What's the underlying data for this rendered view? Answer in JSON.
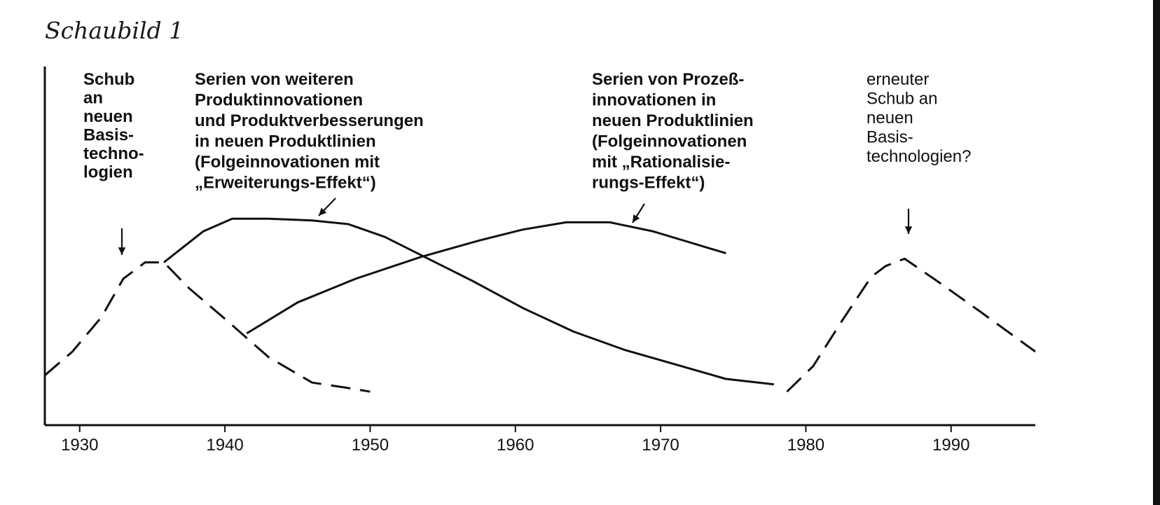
{
  "chart_data": {
    "type": "line",
    "title": "Schaubild 1",
    "xlabel": "",
    "ylabel": "",
    "xlim": [
      1927.6,
      1995.8
    ],
    "ylim": [
      0,
      100
    ],
    "x_ticks": [
      1930,
      1940,
      1950,
      1960,
      1970,
      1980,
      1990
    ],
    "grid": false,
    "series": [
      {
        "style": "dashed",
        "color": "#111111",
        "points": [
          [
            1927.6,
            12
          ],
          [
            1929.5,
            25
          ],
          [
            1931.5,
            44
          ],
          [
            1933.0,
            65
          ],
          [
            1934.5,
            74
          ],
          [
            1935.8,
            74
          ],
          [
            1937.5,
            60
          ],
          [
            1940.0,
            43
          ],
          [
            1943.0,
            22
          ],
          [
            1946.0,
            8
          ],
          [
            1948.5,
            5
          ],
          [
            1950.0,
            3
          ]
        ]
      },
      {
        "style": "solid",
        "color": "#111111",
        "points": [
          [
            1935.8,
            74
          ],
          [
            1938.5,
            91
          ],
          [
            1940.5,
            98
          ],
          [
            1943.0,
            98
          ],
          [
            1946.0,
            97
          ],
          [
            1948.5,
            95
          ],
          [
            1951.0,
            88
          ],
          [
            1953.5,
            78
          ],
          [
            1957.0,
            64
          ],
          [
            1960.5,
            49
          ],
          [
            1964.0,
            36
          ],
          [
            1967.5,
            26
          ],
          [
            1971.0,
            18
          ],
          [
            1974.5,
            10
          ],
          [
            1977.8,
            7
          ]
        ]
      },
      {
        "style": "solid",
        "color": "#111111",
        "points": [
          [
            1941.5,
            35
          ],
          [
            1945.0,
            52
          ],
          [
            1949.0,
            65
          ],
          [
            1953.5,
            77
          ],
          [
            1957.5,
            86
          ],
          [
            1960.5,
            92
          ],
          [
            1963.5,
            96
          ],
          [
            1966.5,
            96
          ],
          [
            1969.5,
            91
          ],
          [
            1972.0,
            85
          ],
          [
            1974.5,
            79
          ]
        ]
      },
      {
        "style": "dashed",
        "color": "#111111",
        "points": [
          [
            1978.7,
            3
          ],
          [
            1980.5,
            17
          ],
          [
            1982.5,
            42
          ],
          [
            1984.5,
            66
          ],
          [
            1985.5,
            72
          ],
          [
            1986.8,
            76
          ],
          [
            1989.0,
            64
          ],
          [
            1992.0,
            47
          ],
          [
            1995.8,
            25
          ]
        ]
      }
    ],
    "annotations": [
      {
        "lines": [
          "Schub",
          "an",
          "neuen",
          "Basis-",
          "techno-",
          "logien"
        ],
        "bold": true
      },
      {
        "lines": [
          "Serien von weiteren",
          "Produktinnovationen",
          "und Produktverbesserungen",
          "in neuen Produktlinien",
          "(Folgeinnovationen mit",
          "„Erweiterungs-Effekt“)"
        ],
        "bold": true
      },
      {
        "lines": [
          "Serien von Prozeß-",
          "innovationen in",
          "neuen Produktlinien",
          "(Folgeinnovationen",
          "mit „Rationalisie-",
          "rungs-Effekt“)"
        ],
        "bold": true
      },
      {
        "lines": [
          "erneuter",
          "Schub an",
          "neuen",
          "Basis-",
          "technologien?"
        ],
        "bold": false
      }
    ]
  }
}
